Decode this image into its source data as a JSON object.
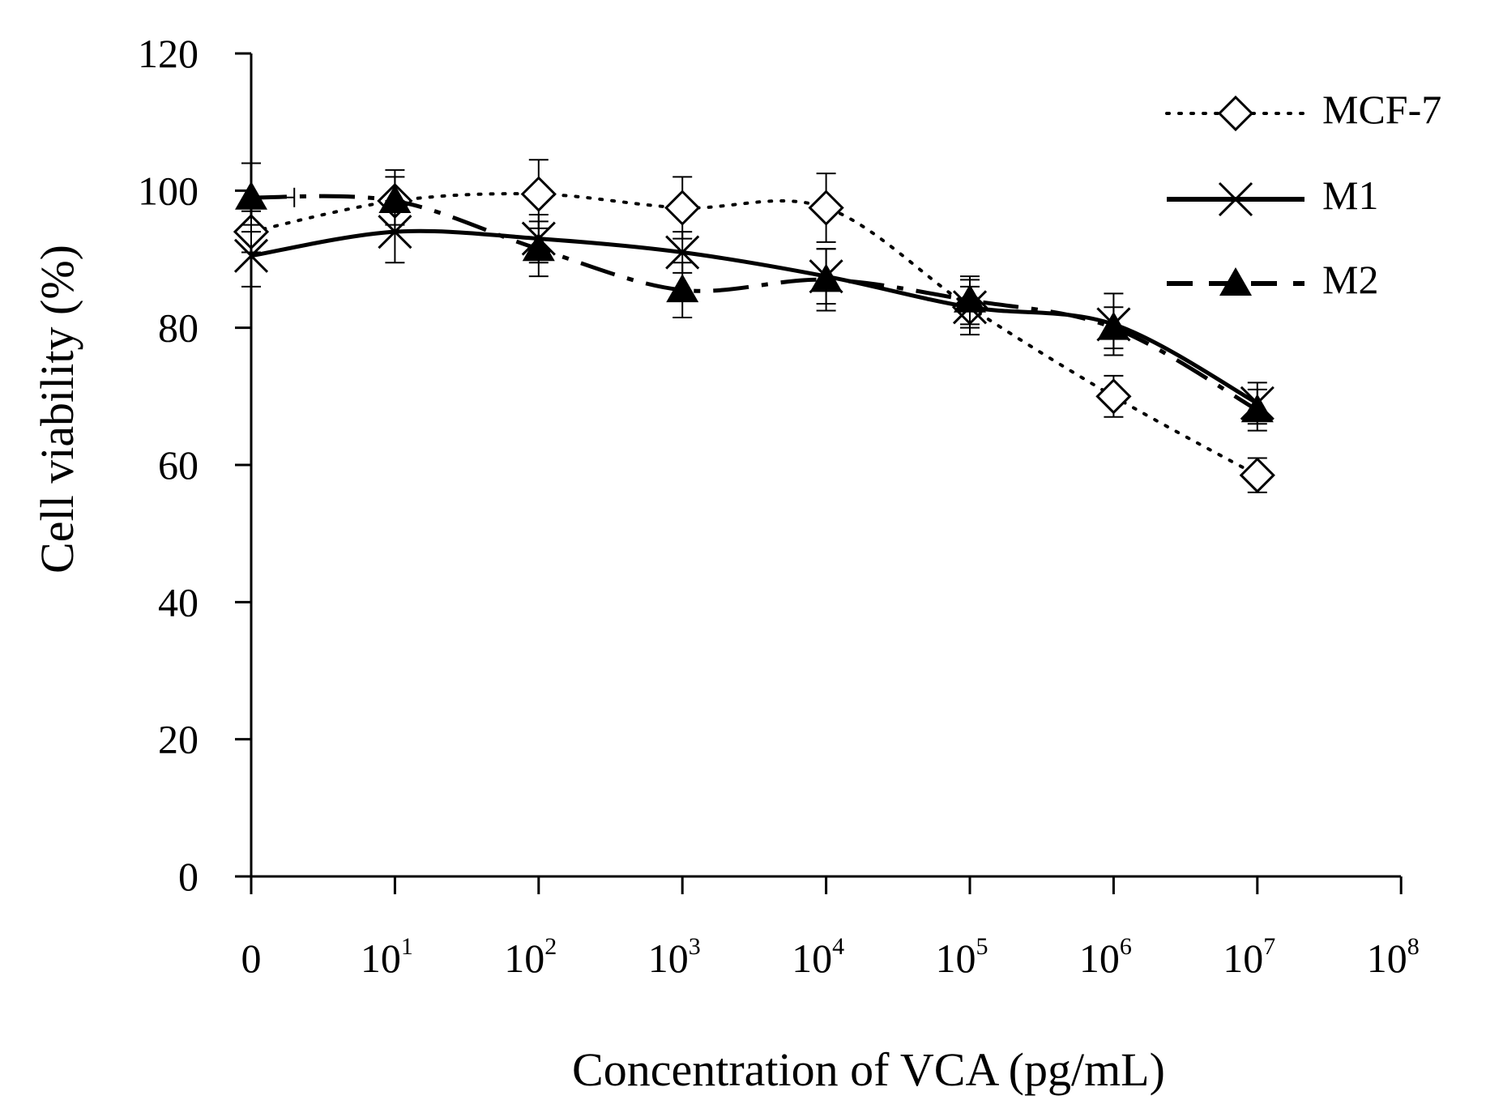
{
  "chart_data": {
    "type": "line",
    "title": "",
    "xlabel": "Concentration of VCA (pg/mL)",
    "ylabel": "Cell viability (%)",
    "ylim": [
      0,
      120
    ],
    "y_ticks": [
      "0",
      "20",
      "40",
      "60",
      "80",
      "100",
      "120"
    ],
    "x_ticks": [
      {
        "base": "0",
        "exp": ""
      },
      {
        "base": "10",
        "exp": "1"
      },
      {
        "base": "10",
        "exp": "2"
      },
      {
        "base": "10",
        "exp": "3"
      },
      {
        "base": "10",
        "exp": "4"
      },
      {
        "base": "10",
        "exp": "5"
      },
      {
        "base": "10",
        "exp": "6"
      },
      {
        "base": "10",
        "exp": "7"
      },
      {
        "base": "10",
        "exp": "8"
      }
    ],
    "grid": false,
    "legend_position": "top-right",
    "series": [
      {
        "name": "MCF-7",
        "marker": "open-diamond",
        "line_style": "dotted",
        "color": "#000000",
        "values": [
          94,
          98.5,
          99.5,
          97.5,
          97.5,
          83,
          70,
          58.5
        ],
        "errors": [
          3,
          3.5,
          5,
          4.5,
          5,
          3,
          3,
          2.5
        ]
      },
      {
        "name": "M1",
        "marker": "x",
        "line_style": "solid",
        "color": "#000000",
        "values": [
          90.5,
          94,
          93,
          91,
          87.5,
          83,
          80.5,
          69
        ],
        "errors": [
          4.5,
          4.5,
          3.5,
          3,
          4,
          4,
          4.5,
          3
        ]
      },
      {
        "name": "M2",
        "marker": "filled-triangle",
        "line_style": "dash-dot",
        "color": "#000000",
        "values": [
          99,
          98.5,
          91.5,
          85.5,
          87,
          84,
          80,
          68
        ],
        "errors": [
          5,
          4.5,
          4,
          4,
          4.5,
          3.5,
          3,
          3
        ],
        "x_error_first": 0.3
      }
    ]
  }
}
